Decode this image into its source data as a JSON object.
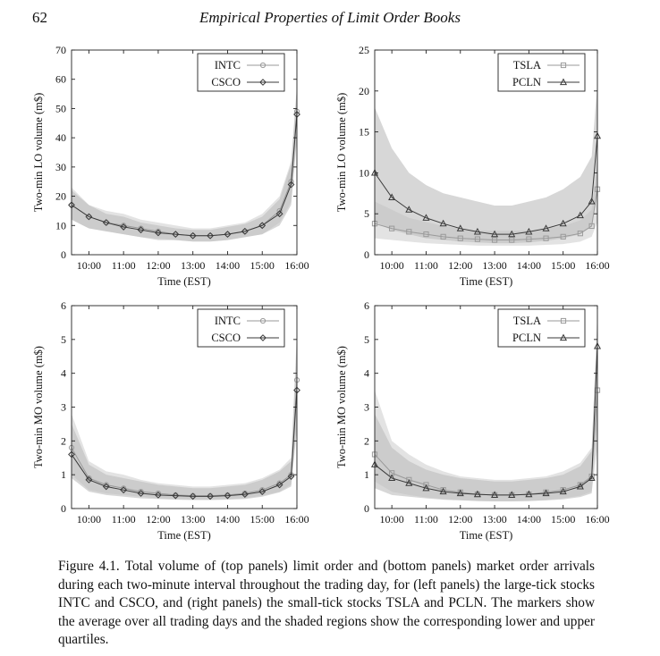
{
  "header": {
    "page_number": "62",
    "running_title": "Empirical Properties of Limit Order Books"
  },
  "caption": {
    "label": "Figure 4.1.",
    "text": "Total volume of (top panels) limit order and (bottom panels) market order arrivals during each two-minute interval throughout the trading day, for (left panels) the large-tick stocks INTC and CSCO, and (right panels) the small-tick stocks TSLA and PCLN. The markers show the average over all trading days and the shaded regions show the corresponding lower and upper quartiles."
  },
  "colors": {
    "series_light": "#9a9a9a",
    "series_dark": "#3a3a3a",
    "band_light": "#d9d9d9",
    "band_dark": "#bdbdbd"
  },
  "chart_data": [
    {
      "type": "line",
      "panel": "top-left",
      "xlabel": "Time (EST)",
      "ylabel": "Two-min LO volume (m$)",
      "xlim": [
        "09:30",
        "16:00"
      ],
      "ylim": [
        0,
        70
      ],
      "xticks": [
        "10:00",
        "11:00",
        "12:00",
        "13:00",
        "14:00",
        "15:00",
        "16:00"
      ],
      "yticks": [
        "0",
        "10",
        "20",
        "30",
        "40",
        "50",
        "60",
        "70"
      ],
      "legend_position": "top-right",
      "grid": false,
      "x": [
        "09:30",
        "10:00",
        "10:30",
        "11:00",
        "11:30",
        "12:00",
        "12:30",
        "13:00",
        "13:30",
        "14:00",
        "14:30",
        "15:00",
        "15:30",
        "15:50",
        "16:00"
      ],
      "series": [
        {
          "name": "INTC",
          "marker": "circle",
          "mean": [
            17,
            13,
            11,
            10,
            9,
            8,
            7,
            6.5,
            6.5,
            7,
            8,
            10,
            15,
            25,
            49
          ],
          "q1": [
            12,
            9,
            8,
            7,
            6,
            5.5,
            5,
            4.5,
            4.5,
            5,
            6,
            7,
            11,
            18,
            40
          ],
          "q3": [
            23,
            17,
            15,
            14,
            12,
            11,
            10,
            9,
            9,
            10,
            11,
            14,
            20,
            32,
            58
          ]
        },
        {
          "name": "CSCO",
          "marker": "diamond",
          "mean": [
            17,
            13,
            11,
            9.5,
            8.5,
            7.5,
            7,
            6.5,
            6.5,
            7,
            8,
            10,
            14,
            24,
            48
          ],
          "q1": [
            12,
            9,
            8,
            7,
            6,
            5,
            5,
            4.5,
            4.5,
            5,
            6,
            7,
            10,
            17,
            39
          ],
          "q3": [
            22,
            17,
            14,
            13,
            11,
            10,
            9,
            8.5,
            8.5,
            9.5,
            10.5,
            13,
            19,
            31,
            57
          ]
        }
      ]
    },
    {
      "type": "line",
      "panel": "top-right",
      "xlabel": "Time (EST)",
      "ylabel": "Two-min LO volume (m$)",
      "xlim": [
        "09:30",
        "16:00"
      ],
      "ylim": [
        0,
        25
      ],
      "xticks": [
        "10:00",
        "11:00",
        "12:00",
        "13:00",
        "14:00",
        "15:00",
        "16:00"
      ],
      "yticks": [
        "0",
        "5",
        "10",
        "15",
        "20",
        "25"
      ],
      "legend_position": "top-right",
      "grid": false,
      "x": [
        "09:30",
        "10:00",
        "10:30",
        "11:00",
        "11:30",
        "12:00",
        "12:30",
        "13:00",
        "13:30",
        "14:00",
        "14:30",
        "15:00",
        "15:30",
        "15:50",
        "16:00"
      ],
      "series": [
        {
          "name": "TSLA",
          "marker": "square",
          "mean": [
            3.8,
            3.2,
            2.8,
            2.5,
            2.2,
            2.0,
            1.9,
            1.8,
            1.8,
            1.9,
            2.0,
            2.2,
            2.6,
            3.5,
            8
          ],
          "q1": [
            2,
            1.8,
            1.6,
            1.4,
            1.3,
            1.2,
            1.1,
            1.1,
            1.1,
            1.1,
            1.2,
            1.3,
            1.6,
            2.2,
            4
          ],
          "q3": [
            6.5,
            5.5,
            4.5,
            4,
            3.5,
            3.2,
            3,
            2.9,
            2.9,
            3,
            3.2,
            3.5,
            4.2,
            5.5,
            11
          ]
        },
        {
          "name": "PCLN",
          "marker": "triangle",
          "mean": [
            10,
            7,
            5.5,
            4.5,
            3.8,
            3.2,
            2.8,
            2.5,
            2.5,
            2.8,
            3.2,
            3.8,
            4.8,
            6.5,
            14.5
          ],
          "q1": [
            4,
            3,
            2.5,
            2,
            1.8,
            1.6,
            1.5,
            1.4,
            1.4,
            1.5,
            1.7,
            2,
            2.5,
            3.5,
            8
          ],
          "q3": [
            18,
            13,
            10,
            8.5,
            7.5,
            7,
            6.5,
            6,
            6,
            6.5,
            7,
            8,
            9.5,
            12,
            21
          ]
        }
      ]
    },
    {
      "type": "line",
      "panel": "bottom-left",
      "xlabel": "Time (EST)",
      "ylabel": "Two-min MO volume (m$)",
      "xlim": [
        "09:30",
        "16:00"
      ],
      "ylim": [
        0,
        6
      ],
      "xticks": [
        "10:00",
        "11:00",
        "12:00",
        "13:00",
        "14:00",
        "15:00",
        "16:00"
      ],
      "yticks": [
        "0",
        "1",
        "2",
        "3",
        "4",
        "5",
        "6"
      ],
      "legend_position": "top-right",
      "grid": false,
      "x": [
        "09:30",
        "10:00",
        "10:30",
        "11:00",
        "11:30",
        "12:00",
        "12:30",
        "13:00",
        "13:30",
        "14:00",
        "14:30",
        "15:00",
        "15:30",
        "15:50",
        "16:00"
      ],
      "series": [
        {
          "name": "INTC",
          "marker": "circle",
          "mean": [
            1.8,
            0.9,
            0.7,
            0.6,
            0.5,
            0.45,
            0.4,
            0.38,
            0.38,
            0.4,
            0.45,
            0.55,
            0.75,
            1.0,
            3.8
          ],
          "q1": [
            1.0,
            0.55,
            0.45,
            0.4,
            0.35,
            0.3,
            0.28,
            0.26,
            0.26,
            0.28,
            0.3,
            0.38,
            0.5,
            0.7,
            2.5
          ],
          "q3": [
            2.8,
            1.4,
            1.1,
            1.0,
            0.85,
            0.75,
            0.7,
            0.65,
            0.65,
            0.7,
            0.75,
            0.9,
            1.15,
            1.5,
            5.2
          ]
        },
        {
          "name": "CSCO",
          "marker": "diamond",
          "mean": [
            1.6,
            0.85,
            0.65,
            0.55,
            0.45,
            0.4,
            0.38,
            0.36,
            0.36,
            0.38,
            0.42,
            0.5,
            0.7,
            0.95,
            3.5
          ],
          "q1": [
            0.9,
            0.5,
            0.4,
            0.35,
            0.3,
            0.28,
            0.26,
            0.25,
            0.25,
            0.26,
            0.28,
            0.35,
            0.48,
            0.65,
            2.3
          ],
          "q3": [
            2.5,
            1.3,
            1.0,
            0.9,
            0.8,
            0.7,
            0.65,
            0.6,
            0.6,
            0.65,
            0.7,
            0.85,
            1.1,
            1.4,
            5.0
          ]
        }
      ]
    },
    {
      "type": "line",
      "panel": "bottom-right",
      "xlabel": "Time (EST)",
      "ylabel": "Two-min MO volume (m$)",
      "xlim": [
        "09:30",
        "16:00"
      ],
      "ylim": [
        0,
        6
      ],
      "xticks": [
        "10:00",
        "11:00",
        "12:00",
        "13:00",
        "14:00",
        "15:00",
        "16:00"
      ],
      "yticks": [
        "0",
        "1",
        "2",
        "3",
        "4",
        "5",
        "6"
      ],
      "legend_position": "top-right",
      "grid": false,
      "x": [
        "09:30",
        "10:00",
        "10:30",
        "11:00",
        "11:30",
        "12:00",
        "12:30",
        "13:00",
        "13:30",
        "14:00",
        "14:30",
        "15:00",
        "15:30",
        "15:50",
        "16:00"
      ],
      "series": [
        {
          "name": "TSLA",
          "marker": "square",
          "mean": [
            1.6,
            1.05,
            0.85,
            0.7,
            0.55,
            0.48,
            0.42,
            0.4,
            0.4,
            0.42,
            0.48,
            0.55,
            0.7,
            0.95,
            3.5
          ],
          "q1": [
            0.8,
            0.5,
            0.4,
            0.33,
            0.28,
            0.25,
            0.22,
            0.21,
            0.21,
            0.22,
            0.25,
            0.3,
            0.38,
            0.5,
            1.8
          ],
          "q3": [
            3.5,
            2.0,
            1.6,
            1.3,
            1.1,
            0.95,
            0.9,
            0.85,
            0.85,
            0.9,
            0.95,
            1.1,
            1.35,
            1.8,
            5.5
          ]
        },
        {
          "name": "PCLN",
          "marker": "triangle",
          "mean": [
            1.3,
            0.9,
            0.75,
            0.6,
            0.5,
            0.45,
            0.42,
            0.4,
            0.4,
            0.42,
            0.45,
            0.5,
            0.65,
            0.9,
            4.8
          ],
          "q1": [
            0.6,
            0.4,
            0.35,
            0.3,
            0.26,
            0.24,
            0.22,
            0.21,
            0.21,
            0.22,
            0.24,
            0.27,
            0.34,
            0.45,
            2.5
          ],
          "q3": [
            2.8,
            1.8,
            1.4,
            1.15,
            1.0,
            0.9,
            0.85,
            0.8,
            0.8,
            0.85,
            0.9,
            1.0,
            1.25,
            1.7,
            5.8
          ]
        }
      ]
    }
  ]
}
